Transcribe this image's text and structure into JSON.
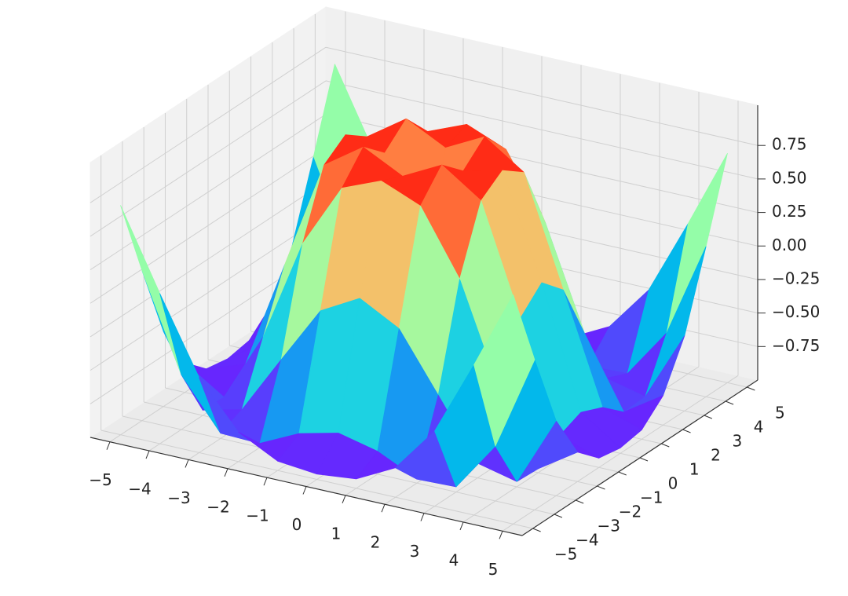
{
  "chart_data": {
    "type": "surface",
    "colormap": "rainbow",
    "grid": true,
    "x": [
      -5,
      -4,
      -3,
      -2,
      -1,
      0,
      1,
      2,
      3,
      4,
      5
    ],
    "y": [
      -5,
      -4,
      -3,
      -2,
      -1,
      0,
      1,
      2,
      3,
      4,
      5
    ],
    "z": [
      [
        0.71,
        0.12,
        -0.44,
        -0.78,
        -0.93,
        -0.96,
        -0.93,
        -0.78,
        -0.44,
        0.12,
        0.71
      ],
      [
        0.12,
        -0.59,
        -0.96,
        -0.97,
        -0.83,
        -0.76,
        -0.83,
        -0.97,
        -0.96,
        -0.59,
        0.12
      ],
      [
        -0.44,
        -0.96,
        -0.89,
        -0.45,
        -0.02,
        0.14,
        -0.02,
        -0.45,
        -0.89,
        -0.96,
        -0.44
      ],
      [
        -0.78,
        -0.97,
        -0.45,
        0.31,
        0.79,
        0.91,
        0.79,
        0.31,
        -0.45,
        -0.97,
        -0.78
      ],
      [
        -0.93,
        -0.83,
        -0.02,
        0.79,
        0.99,
        0.84,
        0.99,
        0.79,
        -0.02,
        -0.83,
        -0.93
      ],
      [
        -0.96,
        -0.76,
        0.14,
        0.91,
        0.84,
        0,
        0.84,
        0.91,
        0.14,
        -0.76,
        -0.96
      ],
      [
        -0.93,
        -0.83,
        -0.02,
        0.79,
        0.99,
        0.84,
        0.99,
        0.79,
        -0.02,
        -0.83,
        -0.93
      ],
      [
        -0.78,
        -0.97,
        -0.45,
        0.31,
        0.79,
        0.91,
        0.79,
        0.31,
        -0.45,
        -0.97,
        -0.78
      ],
      [
        -0.44,
        -0.96,
        -0.89,
        -0.45,
        -0.02,
        0.14,
        -0.02,
        -0.45,
        -0.89,
        -0.96,
        -0.44
      ],
      [
        0.12,
        -0.59,
        -0.96,
        -0.97,
        -0.83,
        -0.76,
        -0.83,
        -0.97,
        -0.96,
        -0.59,
        0.12
      ],
      [
        0.71,
        0.12,
        -0.44,
        -0.78,
        -0.93,
        -0.96,
        -0.93,
        -0.78,
        -0.44,
        0.12,
        0.71
      ]
    ],
    "xlim": [
      -5.5,
      5.5
    ],
    "ylim": [
      -5.5,
      5.5
    ],
    "zlim": [
      -1.0,
      1.05
    ],
    "xticks": [
      {
        "value": -5,
        "label": "−5"
      },
      {
        "value": -4,
        "label": "−4"
      },
      {
        "value": -3,
        "label": "−3"
      },
      {
        "value": -2,
        "label": "−2"
      },
      {
        "value": -1,
        "label": "−1"
      },
      0,
      1,
      2,
      3,
      4,
      5
    ],
    "yticks": [
      {
        "value": -5,
        "label": "−5"
      },
      {
        "value": -4,
        "label": "−4"
      },
      {
        "value": -3,
        "label": "−3"
      },
      {
        "value": -2,
        "label": "−2"
      },
      {
        "value": -1,
        "label": "−1"
      },
      0,
      1,
      2,
      3,
      4,
      5
    ],
    "zticks": [
      {
        "value": -0.75,
        "label": "−0.75"
      },
      {
        "value": -0.5,
        "label": "−0.50"
      },
      {
        "value": -0.25,
        "label": "−0.25"
      },
      {
        "value": 0,
        "label": "0.00"
      },
      0.25,
      {
        "value": 0.5,
        "label": "0.50"
      },
      0.75
    ]
  }
}
